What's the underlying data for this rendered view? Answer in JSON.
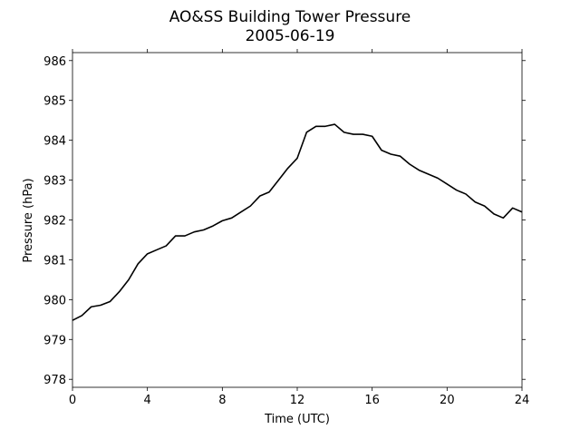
{
  "chart_data": {
    "type": "line",
    "title": "AO&SS Building Tower Pressure",
    "subtitle": "2005-06-19",
    "x_label": "Time (UTC)",
    "y_label": "Pressure (hPa)",
    "x": [
      0,
      0.5,
      1,
      1.5,
      2,
      2.5,
      3,
      3.5,
      4,
      4.5,
      5,
      5.5,
      6,
      6.5,
      7,
      7.5,
      8,
      8.5,
      9,
      9.5,
      10,
      10.5,
      11,
      11.5,
      12,
      12.5,
      13,
      13.5,
      14,
      14.5,
      15,
      15.5,
      16,
      16.5,
      17,
      17.5,
      18,
      18.5,
      19,
      19.5,
      20,
      20.5,
      21,
      21.5,
      22,
      22.5,
      23,
      23.5,
      24
    ],
    "series": [
      {
        "name": "Pressure",
        "color": "#000000",
        "values": [
          979.48,
          979.6,
          979.82,
          979.86,
          979.95,
          980.2,
          980.5,
          980.9,
          981.15,
          981.25,
          981.35,
          981.6,
          981.6,
          981.7,
          981.75,
          981.85,
          981.98,
          982.05,
          982.2,
          982.35,
          982.6,
          982.7,
          983.0,
          983.3,
          983.55,
          984.2,
          984.35,
          984.35,
          984.4,
          984.2,
          984.15,
          984.15,
          984.1,
          983.75,
          983.65,
          983.6,
          983.4,
          983.25,
          983.15,
          983.05,
          982.9,
          982.75,
          982.65,
          982.45,
          982.35,
          982.15,
          982.05,
          982.3,
          982.2
        ]
      }
    ],
    "xlim": [
      0,
      24
    ],
    "xticks": [
      0,
      4,
      8,
      12,
      16,
      20,
      24
    ],
    "ylim": [
      977.8,
      986.2
    ],
    "yticks": [
      978,
      979,
      980,
      981,
      982,
      983,
      984,
      985,
      986
    ]
  }
}
